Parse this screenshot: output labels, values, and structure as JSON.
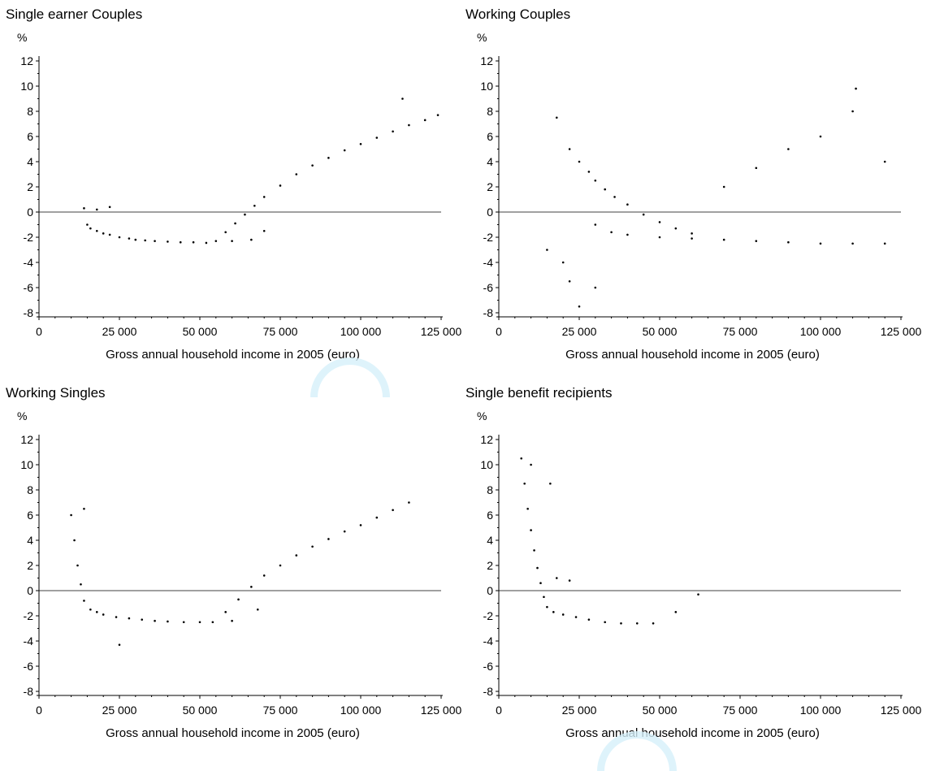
{
  "chart_data": [
    {
      "type": "scatter",
      "title": "Single earner Couples",
      "ylabel": "%",
      "xlabel": "Gross annual household income in 2005 (euro)",
      "xlim": [
        0,
        125000
      ],
      "ylim": [
        -8,
        12
      ],
      "xticks": [
        0,
        25000,
        50000,
        75000,
        100000,
        125000
      ],
      "xtick_labels": [
        "0",
        "25 000",
        "50 000",
        "75 000",
        "100 000",
        "125 000"
      ],
      "yticks": [
        12,
        10,
        8,
        6,
        4,
        2,
        0,
        -2,
        -4,
        -6,
        -8
      ],
      "reference_line_y": 0,
      "points": [
        [
          14000,
          0.3
        ],
        [
          15000,
          -1.0
        ],
        [
          16000,
          -1.3
        ],
        [
          18000,
          -1.5
        ],
        [
          20000,
          -1.7
        ],
        [
          22000,
          -1.8
        ],
        [
          25000,
          -2.0
        ],
        [
          28000,
          -2.1
        ],
        [
          30000,
          -2.2
        ],
        [
          33000,
          -2.25
        ],
        [
          36000,
          -2.3
        ],
        [
          40000,
          -2.35
        ],
        [
          44000,
          -2.4
        ],
        [
          48000,
          -2.4
        ],
        [
          52000,
          -2.45
        ],
        [
          55000,
          -2.3
        ],
        [
          58000,
          -1.6
        ],
        [
          61000,
          -0.9
        ],
        [
          64000,
          -0.2
        ],
        [
          67000,
          0.5
        ],
        [
          70000,
          1.2
        ],
        [
          75000,
          2.1
        ],
        [
          80000,
          3.0
        ],
        [
          85000,
          3.7
        ],
        [
          90000,
          4.3
        ],
        [
          95000,
          4.9
        ],
        [
          100000,
          5.4
        ],
        [
          105000,
          5.9
        ],
        [
          110000,
          6.4
        ],
        [
          115000,
          6.9
        ],
        [
          120000,
          7.3
        ],
        [
          124000,
          7.7
        ],
        [
          60000,
          -2.3
        ],
        [
          66000,
          -2.2
        ],
        [
          70000,
          -1.5
        ],
        [
          18000,
          0.2
        ],
        [
          22000,
          0.4
        ],
        [
          113000,
          9.0
        ]
      ]
    },
    {
      "type": "scatter",
      "title": "Working Couples",
      "ylabel": "%",
      "xlabel": "Gross annual household income in 2005 (euro)",
      "xlim": [
        0,
        125000
      ],
      "ylim": [
        -8,
        12
      ],
      "xticks": [
        0,
        25000,
        50000,
        75000,
        100000,
        125000
      ],
      "xtick_labels": [
        "0",
        "25 000",
        "50 000",
        "75 000",
        "100 000",
        "125 000"
      ],
      "yticks": [
        12,
        10,
        8,
        6,
        4,
        2,
        0,
        -2,
        -4,
        -6,
        -8
      ],
      "reference_line_y": 0,
      "points": [
        [
          18000,
          7.5
        ],
        [
          22000,
          5.0
        ],
        [
          25000,
          4.0
        ],
        [
          28000,
          3.2
        ],
        [
          30000,
          2.5
        ],
        [
          33000,
          1.8
        ],
        [
          36000,
          1.2
        ],
        [
          40000,
          0.6
        ],
        [
          45000,
          -0.2
        ],
        [
          50000,
          -0.8
        ],
        [
          55000,
          -1.3
        ],
        [
          60000,
          -1.7
        ],
        [
          30000,
          -1.0
        ],
        [
          35000,
          -1.6
        ],
        [
          40000,
          -1.8
        ],
        [
          50000,
          -2.0
        ],
        [
          60000,
          -2.1
        ],
        [
          70000,
          -2.2
        ],
        [
          80000,
          -2.3
        ],
        [
          90000,
          -2.4
        ],
        [
          100000,
          -2.5
        ],
        [
          110000,
          -2.5
        ],
        [
          120000,
          -2.5
        ],
        [
          70000,
          2.0
        ],
        [
          80000,
          3.5
        ],
        [
          90000,
          5.0
        ],
        [
          100000,
          6.0
        ],
        [
          110000,
          8.0
        ],
        [
          111000,
          9.8
        ],
        [
          120000,
          4.0
        ],
        [
          20000,
          -4.0
        ],
        [
          22000,
          -5.5
        ],
        [
          25000,
          -7.5
        ],
        [
          30000,
          -6.0
        ],
        [
          15000,
          -3.0
        ]
      ]
    },
    {
      "type": "scatter",
      "title": "Working Singles",
      "ylabel": "%",
      "xlabel": "Gross annual household income in 2005 (euro)",
      "xlim": [
        0,
        125000
      ],
      "ylim": [
        -8,
        12
      ],
      "xticks": [
        0,
        25000,
        50000,
        75000,
        100000,
        125000
      ],
      "xtick_labels": [
        "0",
        "25 000",
        "50 000",
        "75 000",
        "100 000",
        "125 000"
      ],
      "yticks": [
        12,
        10,
        8,
        6,
        4,
        2,
        0,
        -2,
        -4,
        -6,
        -8
      ],
      "reference_line_y": 0,
      "points": [
        [
          10000,
          6.0
        ],
        [
          11000,
          4.0
        ],
        [
          12000,
          2.0
        ],
        [
          13000,
          0.5
        ],
        [
          14000,
          -0.8
        ],
        [
          16000,
          -1.5
        ],
        [
          18000,
          -1.7
        ],
        [
          20000,
          -1.9
        ],
        [
          24000,
          -2.1
        ],
        [
          28000,
          -2.2
        ],
        [
          32000,
          -2.3
        ],
        [
          36000,
          -2.4
        ],
        [
          40000,
          -2.45
        ],
        [
          45000,
          -2.5
        ],
        [
          50000,
          -2.5
        ],
        [
          54000,
          -2.5
        ],
        [
          58000,
          -1.7
        ],
        [
          62000,
          -0.7
        ],
        [
          66000,
          0.3
        ],
        [
          70000,
          1.2
        ],
        [
          75000,
          2.0
        ],
        [
          80000,
          2.8
        ],
        [
          85000,
          3.5
        ],
        [
          90000,
          4.1
        ],
        [
          95000,
          4.7
        ],
        [
          100000,
          5.2
        ],
        [
          105000,
          5.8
        ],
        [
          110000,
          6.4
        ],
        [
          115000,
          7.0
        ],
        [
          14000,
          6.5
        ],
        [
          25000,
          -4.3
        ],
        [
          60000,
          -2.4
        ],
        [
          68000,
          -1.5
        ]
      ]
    },
    {
      "type": "scatter",
      "title": "Single benefit recipients",
      "ylabel": "%",
      "xlabel": "Gross annual household income in 2005 (euro)",
      "xlim": [
        0,
        125000
      ],
      "ylim": [
        -8,
        12
      ],
      "xticks": [
        0,
        25000,
        50000,
        75000,
        100000,
        125000
      ],
      "xtick_labels": [
        "0",
        "25 000",
        "50 000",
        "75 000",
        "100 000",
        "125 000"
      ],
      "yticks": [
        12,
        10,
        8,
        6,
        4,
        2,
        0,
        -2,
        -4,
        -6,
        -8
      ],
      "reference_line_y": 0,
      "points": [
        [
          7000,
          10.5
        ],
        [
          8000,
          8.5
        ],
        [
          9000,
          6.5
        ],
        [
          10000,
          4.8
        ],
        [
          11000,
          3.2
        ],
        [
          12000,
          1.8
        ],
        [
          13000,
          0.6
        ],
        [
          14000,
          -0.5
        ],
        [
          15000,
          -1.3
        ],
        [
          17000,
          -1.7
        ],
        [
          20000,
          -1.9
        ],
        [
          24000,
          -2.1
        ],
        [
          28000,
          -2.3
        ],
        [
          33000,
          -2.5
        ],
        [
          38000,
          -2.6
        ],
        [
          43000,
          -2.6
        ],
        [
          48000,
          -2.6
        ],
        [
          55000,
          -1.7
        ],
        [
          62000,
          -0.3
        ],
        [
          16000,
          8.5
        ],
        [
          18000,
          1.0
        ],
        [
          22000,
          0.8
        ],
        [
          10000,
          10.0
        ]
      ]
    }
  ]
}
